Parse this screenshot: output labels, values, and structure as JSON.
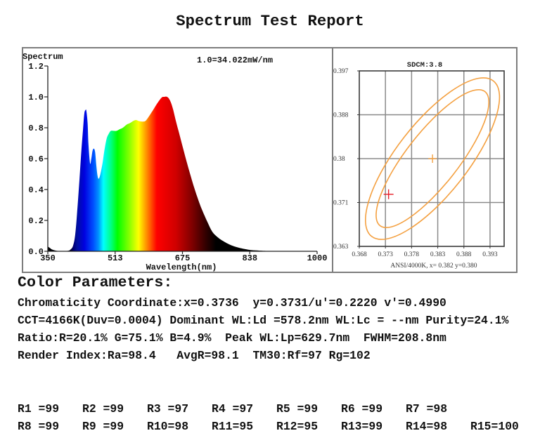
{
  "report": {
    "title": "Spectrum Test Report"
  },
  "color_parameters": {
    "heading": "Color Parameters:",
    "chromaticity": {
      "label": "Chromaticity Coordinate:",
      "x": "x=0.3736",
      "y": "y=0.3731",
      "separator": "/",
      "u_prime": "u'=0.2220",
      "v_prime": "v'=0.4990"
    },
    "cct": {
      "cct": "CCT=4166K",
      "duv": "(Duv=0.0004)",
      "dominant_label": "Dominant WL:Ld",
      "dominant_value": "=578.2nm",
      "complementary_label": "WL:Lc",
      "complementary_value": "= --nm",
      "purity": "Purity=24.1%"
    },
    "ratio": {
      "label": "Ratio:",
      "r": "R=20.1%",
      "g": "G=75.1%",
      "b": "B=4.9%",
      "peak": "Peak WL:Lp=629.7nm",
      "fwhm": "FWHM=208.8nm"
    },
    "render_index": {
      "label": "Render Index:",
      "ra": "Ra=98.4",
      "avg_r": "AvgR=98.1",
      "tm30_label": "TM30:",
      "rf": "Rf=97",
      "rg": "Rg=102"
    }
  },
  "render_index_values": {
    "row1": [
      {
        "label": "R1 =",
        "value": "99"
      },
      {
        "label": "R2 =",
        "value": "99"
      },
      {
        "label": "R3 =",
        "value": "97"
      },
      {
        "label": "R4 =",
        "value": "97"
      },
      {
        "label": "R5 =",
        "value": "99"
      },
      {
        "label": "R6 =",
        "value": "99"
      },
      {
        "label": "R7 =",
        "value": "98"
      }
    ],
    "row2": [
      {
        "label": "R8 =",
        "value": "99"
      },
      {
        "label": "R9 =",
        "value": "99"
      },
      {
        "label": "R10=",
        "value": "98"
      },
      {
        "label": "R11=",
        "value": "95"
      },
      {
        "label": "R12=",
        "value": "95"
      },
      {
        "label": "R13=",
        "value": "99"
      },
      {
        "label": "R14=",
        "value": "98"
      },
      {
        "label": "R15=",
        "value": "100"
      }
    ]
  },
  "chart_data": [
    {
      "type": "area",
      "title": "Spectrum",
      "annotation": "1.0=34.022mW/nm",
      "xlabel": "Wavelength(nm)",
      "ylabel": "Spectrum",
      "xlim": [
        350,
        1000
      ],
      "ylim": [
        0,
        1.2
      ],
      "xticks": [
        "350",
        "513",
        "675",
        "838",
        "1000"
      ],
      "yticks": [
        "0.0",
        "0.2",
        "0.4",
        "0.6",
        "0.8",
        "1.0",
        "1.2"
      ],
      "grid": false,
      "legend": null,
      "series": [
        {
          "name": "Relative spectral power",
          "x": [
            350,
            355,
            360,
            370,
            380,
            390,
            400,
            405,
            411,
            416,
            421,
            426,
            431,
            435,
            438,
            441,
            443,
            446,
            448,
            452,
            455,
            458,
            461,
            464,
            467,
            470,
            473,
            477,
            482,
            487,
            492,
            497,
            502,
            509,
            516,
            523,
            531,
            540,
            548,
            557,
            563,
            570,
            579,
            586,
            594,
            603,
            611,
            620,
            626,
            631,
            638,
            645,
            652,
            659,
            667,
            675,
            684,
            693,
            701,
            711,
            721,
            735,
            747,
            760,
            772,
            791,
            811,
            837,
            857,
            880,
            920,
            1000
          ],
          "y": [
            0.03,
            0.022,
            0.012,
            0.004,
            0.002,
            0.002,
            0.004,
            0.012,
            0.036,
            0.105,
            0.26,
            0.45,
            0.65,
            0.79,
            0.89,
            0.915,
            0.91,
            0.83,
            0.7,
            0.57,
            0.6,
            0.65,
            0.665,
            0.645,
            0.56,
            0.49,
            0.47,
            0.5,
            0.57,
            0.66,
            0.73,
            0.76,
            0.78,
            0.78,
            0.78,
            0.79,
            0.8,
            0.82,
            0.83,
            0.845,
            0.85,
            0.843,
            0.84,
            0.845,
            0.873,
            0.91,
            0.945,
            0.98,
            0.998,
            1.0,
            1.0,
            0.977,
            0.923,
            0.845,
            0.764,
            0.682,
            0.591,
            0.505,
            0.432,
            0.35,
            0.277,
            0.191,
            0.127,
            0.091,
            0.068,
            0.041,
            0.023,
            0.009,
            0.005,
            0.002,
            0.001,
            0.0
          ]
        }
      ],
      "fill_gradient": [
        {
          "nm": 350,
          "color": "#000000"
        },
        {
          "nm": 404,
          "color": "#000020"
        },
        {
          "nm": 414,
          "color": "#000080"
        },
        {
          "nm": 421,
          "color": "#0010a0"
        },
        {
          "nm": 438,
          "color": "#0000e0"
        },
        {
          "nm": 460,
          "color": "#0050ff"
        },
        {
          "nm": 472,
          "color": "#0090ff"
        },
        {
          "nm": 484,
          "color": "#00ffff"
        },
        {
          "nm": 503,
          "color": "#00ff80"
        },
        {
          "nm": 518,
          "color": "#00ff00"
        },
        {
          "nm": 545,
          "color": "#80ff00"
        },
        {
          "nm": 569,
          "color": "#ffff00"
        },
        {
          "nm": 591,
          "color": "#ff8000"
        },
        {
          "nm": 613,
          "color": "#ff0000"
        },
        {
          "nm": 659,
          "color": "#d00000"
        },
        {
          "nm": 698,
          "color": "#800000"
        },
        {
          "nm": 732,
          "color": "#300000"
        },
        {
          "nm": 756,
          "color": "#000000"
        },
        {
          "nm": 1000,
          "color": "#000000"
        }
      ]
    },
    {
      "type": "scatter",
      "title": "SDCM:3.8",
      "xlabel": "ANSI/4000K, x= 0.382 y=0.380",
      "ylabel": "",
      "xlim": [
        0.368,
        0.3957
      ],
      "ylim": [
        0.363,
        0.397
      ],
      "xticks": [
        "0.368",
        "0.373",
        "0.378",
        "0.383",
        "0.388",
        "0.393"
      ],
      "yticks": [
        "0.363",
        "0.371",
        "0.38",
        "0.388",
        "0.397"
      ],
      "grid": true,
      "points": [
        {
          "name": "Measured chromaticity",
          "x": 0.3736,
          "y": 0.3731,
          "color": "#e8202a",
          "marker": "+"
        },
        {
          "name": "ANSI 4000K center",
          "x": 0.382,
          "y": 0.38,
          "color": "#f4a040",
          "marker": "+"
        }
      ],
      "ellipses": [
        {
          "name": "outer-ellipse",
          "cx": 0.382,
          "cy": 0.38,
          "a": 0.0189,
          "b": 0.0068,
          "angle_deg": 52,
          "color": "#f4a040"
        },
        {
          "name": "inner-ellipse",
          "cx": 0.382,
          "cy": 0.38,
          "a": 0.0163,
          "b": 0.005,
          "angle_deg": 52,
          "color": "#f4a040"
        }
      ]
    }
  ]
}
